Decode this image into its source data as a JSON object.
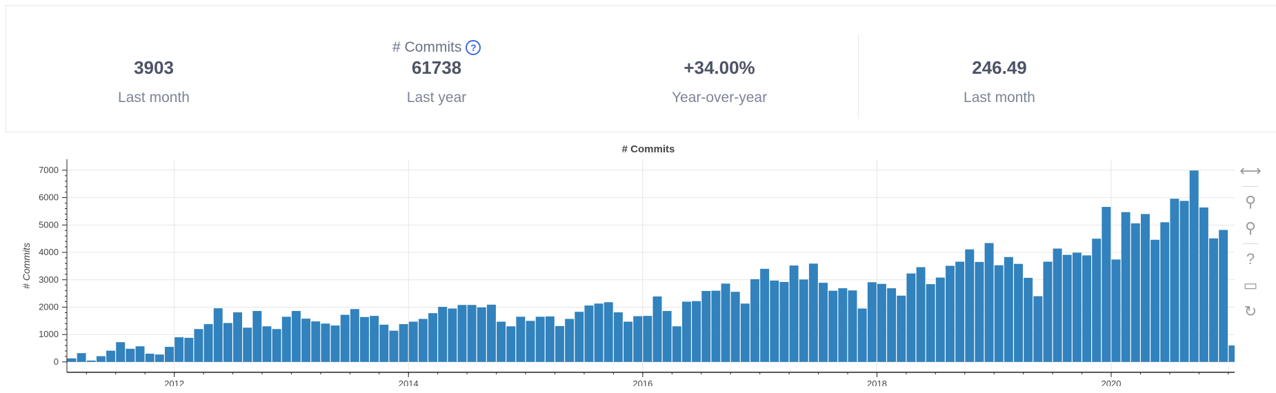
{
  "stats": {
    "title": "# Commits",
    "help_symbol": "?",
    "items": [
      {
        "value": "3903",
        "label": "Last month"
      },
      {
        "value": "61738",
        "label": "Last year"
      },
      {
        "value": "+34.00%",
        "label": "Year-over-year"
      },
      {
        "value": "246.49",
        "label": "Last month"
      }
    ]
  },
  "toolbar": {
    "icons": [
      "pan-icon",
      "box-zoom-icon",
      "wheel-zoom-icon",
      "help-icon",
      "save-icon",
      "reset-icon"
    ],
    "glyphs": [
      "⟷",
      "⚲",
      "⚲",
      "?",
      "▭",
      "↻"
    ]
  },
  "colors": {
    "bar": "#3182bd",
    "accent": "#3f6ad8"
  },
  "chart_data": {
    "type": "bar",
    "title": "# Commits",
    "xlabel": "",
    "ylabel": "# Commits",
    "x_start": "2011-02",
    "x_ticks": [
      "2012",
      "2014",
      "2016",
      "2018",
      "2020"
    ],
    "y_ticks": [
      0,
      1000,
      2000,
      3000,
      4000,
      5000,
      6000,
      7000
    ],
    "ylim": [
      -380,
      7400
    ],
    "grid": true,
    "values": [
      130,
      320,
      50,
      210,
      410,
      720,
      480,
      570,
      300,
      270,
      550,
      900,
      880,
      1200,
      1380,
      1960,
      1420,
      1810,
      1250,
      1860,
      1300,
      1200,
      1650,
      1860,
      1580,
      1480,
      1400,
      1330,
      1720,
      1930,
      1640,
      1680,
      1360,
      1140,
      1380,
      1470,
      1570,
      1780,
      2010,
      1950,
      2080,
      2080,
      1990,
      2090,
      1470,
      1300,
      1650,
      1500,
      1650,
      1660,
      1310,
      1570,
      1830,
      2060,
      2130,
      2180,
      1810,
      1470,
      1670,
      1680,
      2390,
      1860,
      1300,
      2200,
      2220,
      2590,
      2600,
      2860,
      2560,
      2130,
      3020,
      3400,
      2970,
      2920,
      3520,
      3010,
      3590,
      2890,
      2600,
      2690,
      2610,
      1950,
      2910,
      2850,
      2690,
      2420,
      3230,
      3460,
      2840,
      3080,
      3510,
      3660,
      4110,
      3650,
      4340,
      3530,
      3830,
      3580,
      3070,
      2400,
      3660,
      4140,
      3910,
      3990,
      3890,
      4500,
      5660,
      3740,
      5470,
      5060,
      5400,
      4460,
      5100,
      5960,
      5880,
      6990,
      5640,
      4510,
      4820,
      600
    ]
  }
}
